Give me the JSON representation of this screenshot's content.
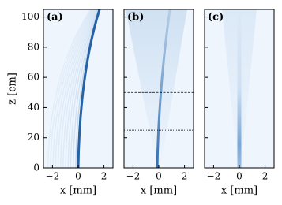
{
  "chart_data": [
    {
      "type": "heatmap",
      "panel_label": "(a)",
      "xlabel": "x [mm]",
      "ylabel": "z [cm]",
      "xlim": [
        -2.7,
        2.7
      ],
      "ylim": [
        0,
        105
      ],
      "xticks": [
        {
          "value": -2,
          "label": "−2"
        },
        0,
        2
      ],
      "yticks": [
        0,
        20,
        40,
        60,
        80,
        100
      ],
      "hlines": []
    },
    {
      "type": "heatmap",
      "panel_label": "(b)",
      "xlabel": "x [mm]",
      "xlim": [
        -2.7,
        2.7
      ],
      "ylim": [
        0,
        105
      ],
      "xticks": [
        {
          "value": -2,
          "label": "−2"
        },
        0,
        2
      ],
      "hlines": [
        50,
        25
      ]
    },
    {
      "type": "heatmap",
      "panel_label": "(c)",
      "xlabel": "x [mm]",
      "xlim": [
        -2.7,
        2.7
      ],
      "ylim": [
        0,
        105
      ],
      "xticks": [
        {
          "value": -2,
          "label": "−2"
        },
        0,
        2
      ],
      "hlines": []
    }
  ]
}
